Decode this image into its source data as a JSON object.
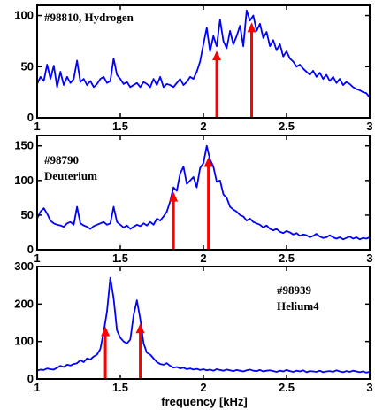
{
  "figure": {
    "xlabel": "frequency [kHz]"
  },
  "chart_data": [
    {
      "type": "line",
      "annotation": [
        "#98810, Hydrogen"
      ],
      "xlim": [
        1,
        3
      ],
      "ylim": [
        0,
        110
      ],
      "xticks": [
        "1",
        "1.5",
        "2",
        "2.5",
        "3"
      ],
      "yticks": [
        "0",
        "50",
        "100"
      ],
      "x": [
        1.0,
        1.02,
        1.04,
        1.06,
        1.08,
        1.1,
        1.12,
        1.14,
        1.16,
        1.18,
        1.2,
        1.22,
        1.24,
        1.26,
        1.28,
        1.3,
        1.32,
        1.34,
        1.36,
        1.38,
        1.4,
        1.42,
        1.44,
        1.46,
        1.48,
        1.5,
        1.52,
        1.54,
        1.56,
        1.58,
        1.6,
        1.62,
        1.64,
        1.66,
        1.68,
        1.7,
        1.72,
        1.74,
        1.76,
        1.78,
        1.8,
        1.82,
        1.84,
        1.86,
        1.88,
        1.9,
        1.92,
        1.94,
        1.96,
        1.98,
        2.0,
        2.02,
        2.04,
        2.06,
        2.08,
        2.1,
        2.12,
        2.14,
        2.16,
        2.18,
        2.2,
        2.22,
        2.24,
        2.26,
        2.28,
        2.3,
        2.32,
        2.34,
        2.36,
        2.38,
        2.4,
        2.42,
        2.44,
        2.46,
        2.48,
        2.5,
        2.52,
        2.54,
        2.56,
        2.58,
        2.6,
        2.62,
        2.64,
        2.66,
        2.68,
        2.7,
        2.72,
        2.74,
        2.76,
        2.78,
        2.8,
        2.82,
        2.84,
        2.86,
        2.88,
        2.9,
        2.92,
        2.94,
        2.96,
        2.98,
        3.0
      ],
      "values": [
        33,
        40,
        36,
        52,
        38,
        51,
        30,
        45,
        32,
        40,
        34,
        38,
        56,
        35,
        38,
        32,
        36,
        30,
        33,
        38,
        40,
        34,
        36,
        58,
        42,
        38,
        33,
        35,
        30,
        32,
        34,
        30,
        35,
        33,
        30,
        38,
        32,
        40,
        30,
        33,
        32,
        30,
        34,
        38,
        32,
        35,
        40,
        38,
        45,
        55,
        72,
        88,
        65,
        80,
        70,
        96,
        75,
        68,
        85,
        72,
        80,
        90,
        70,
        105,
        95,
        100,
        85,
        92,
        78,
        84,
        70,
        76,
        66,
        72,
        60,
        65,
        58,
        55,
        50,
        52,
        48,
        45,
        42,
        46,
        40,
        44,
        38,
        42,
        36,
        40,
        34,
        38,
        32,
        35,
        33,
        30,
        28,
        27,
        25,
        24,
        20
      ],
      "arrows_x": [
        2.08,
        2.29
      ]
    },
    {
      "type": "line",
      "annotation": [
        "#98790",
        "Deuterium"
      ],
      "xlim": [
        1,
        3
      ],
      "ylim": [
        0,
        165
      ],
      "xticks": [
        "1",
        "1.5",
        "2",
        "2.5",
        "3"
      ],
      "yticks": [
        "0",
        "50",
        "100",
        "150"
      ],
      "x": [
        1.0,
        1.02,
        1.04,
        1.06,
        1.08,
        1.1,
        1.12,
        1.14,
        1.16,
        1.18,
        1.2,
        1.22,
        1.24,
        1.26,
        1.28,
        1.3,
        1.32,
        1.34,
        1.36,
        1.38,
        1.4,
        1.42,
        1.44,
        1.46,
        1.48,
        1.5,
        1.52,
        1.54,
        1.56,
        1.58,
        1.6,
        1.62,
        1.64,
        1.66,
        1.68,
        1.7,
        1.72,
        1.74,
        1.76,
        1.78,
        1.8,
        1.82,
        1.84,
        1.86,
        1.88,
        1.9,
        1.92,
        1.94,
        1.96,
        1.98,
        2.0,
        2.02,
        2.04,
        2.06,
        2.08,
        2.1,
        2.12,
        2.14,
        2.16,
        2.18,
        2.2,
        2.22,
        2.24,
        2.26,
        2.28,
        2.3,
        2.32,
        2.34,
        2.36,
        2.38,
        2.4,
        2.42,
        2.44,
        2.46,
        2.48,
        2.5,
        2.52,
        2.54,
        2.56,
        2.58,
        2.6,
        2.62,
        2.64,
        2.66,
        2.68,
        2.7,
        2.72,
        2.74,
        2.76,
        2.78,
        2.8,
        2.82,
        2.84,
        2.86,
        2.88,
        2.9,
        2.92,
        2.94,
        2.96,
        2.98,
        3.0
      ],
      "values": [
        45,
        55,
        60,
        52,
        42,
        38,
        36,
        35,
        33,
        38,
        40,
        36,
        62,
        38,
        35,
        33,
        30,
        34,
        36,
        38,
        40,
        36,
        38,
        62,
        40,
        36,
        32,
        35,
        30,
        33,
        36,
        34,
        38,
        35,
        40,
        36,
        45,
        42,
        48,
        55,
        70,
        90,
        85,
        110,
        120,
        95,
        100,
        105,
        90,
        118,
        125,
        150,
        130,
        120,
        98,
        100,
        80,
        75,
        62,
        58,
        55,
        50,
        48,
        42,
        45,
        40,
        38,
        36,
        32,
        35,
        30,
        28,
        30,
        26,
        24,
        27,
        25,
        22,
        24,
        20,
        22,
        21,
        18,
        20,
        23,
        19,
        17,
        18,
        21,
        18,
        16,
        18,
        15,
        17,
        19,
        16,
        18,
        15,
        17,
        16,
        18
      ],
      "arrows_x": [
        1.82,
        2.03
      ]
    },
    {
      "type": "line",
      "annotation": [
        "#98939",
        "Helium4"
      ],
      "xlim": [
        1,
        3
      ],
      "ylim": [
        0,
        300
      ],
      "xticks": [
        "1",
        "1.5",
        "2",
        "2.5",
        "3"
      ],
      "yticks": [
        "0",
        "100",
        "200",
        "300"
      ],
      "x": [
        1.0,
        1.02,
        1.04,
        1.06,
        1.08,
        1.1,
        1.12,
        1.14,
        1.16,
        1.18,
        1.2,
        1.22,
        1.24,
        1.26,
        1.28,
        1.3,
        1.32,
        1.34,
        1.36,
        1.38,
        1.4,
        1.42,
        1.44,
        1.46,
        1.48,
        1.5,
        1.52,
        1.54,
        1.56,
        1.58,
        1.6,
        1.62,
        1.64,
        1.66,
        1.68,
        1.7,
        1.72,
        1.74,
        1.76,
        1.78,
        1.8,
        1.82,
        1.84,
        1.86,
        1.88,
        1.9,
        1.92,
        1.94,
        1.96,
        1.98,
        2.0,
        2.02,
        2.04,
        2.06,
        2.08,
        2.1,
        2.12,
        2.14,
        2.16,
        2.18,
        2.2,
        2.22,
        2.24,
        2.26,
        2.28,
        2.3,
        2.32,
        2.34,
        2.36,
        2.38,
        2.4,
        2.42,
        2.44,
        2.46,
        2.48,
        2.5,
        2.52,
        2.54,
        2.56,
        2.58,
        2.6,
        2.62,
        2.64,
        2.66,
        2.68,
        2.7,
        2.72,
        2.74,
        2.76,
        2.78,
        2.8,
        2.82,
        2.84,
        2.86,
        2.88,
        2.9,
        2.92,
        2.94,
        2.96,
        2.98,
        3.0
      ],
      "values": [
        22,
        25,
        24,
        28,
        26,
        25,
        30,
        35,
        32,
        38,
        36,
        40,
        42,
        50,
        45,
        55,
        52,
        60,
        65,
        80,
        125,
        180,
        270,
        215,
        130,
        110,
        100,
        95,
        105,
        170,
        210,
        160,
        95,
        70,
        65,
        55,
        45,
        40,
        38,
        42,
        35,
        30,
        32,
        28,
        30,
        26,
        28,
        25,
        27,
        24,
        26,
        23,
        25,
        22,
        26,
        24,
        22,
        25,
        23,
        21,
        24,
        22,
        20,
        23,
        25,
        22,
        21,
        24,
        20,
        22,
        23,
        21,
        19,
        22,
        20,
        24,
        21,
        19,
        22,
        20,
        23,
        18,
        21,
        20,
        19,
        22,
        18,
        20,
        21,
        19,
        23,
        20,
        18,
        21,
        19,
        22,
        20,
        18,
        20,
        17,
        19
      ],
      "arrows_x": [
        1.41,
        1.62
      ]
    }
  ],
  "style": {
    "line_color": "#0000ff",
    "arrow_color": "#ff0000",
    "axis_color": "#000000"
  }
}
